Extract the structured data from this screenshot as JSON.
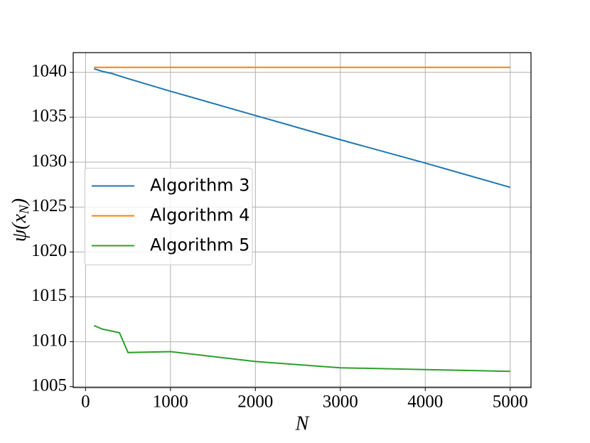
{
  "chart_data": {
    "type": "line",
    "x_label": "N",
    "y_label": "ψ(x_N)",
    "x": [
      100,
      200,
      300,
      400,
      500,
      1000,
      2000,
      3000,
      4000,
      5000
    ],
    "series": [
      {
        "name": "Algorithm 3",
        "color": "#1f77b4",
        "values": [
          1040.4,
          1040.1,
          1039.9,
          1039.6,
          1039.3,
          1037.9,
          1035.2,
          1032.5,
          1029.9,
          1027.2
        ]
      },
      {
        "name": "Algorithm 4",
        "color": "#ff7f0e",
        "values": [
          1040.55,
          1040.55,
          1040.55,
          1040.55,
          1040.55,
          1040.55,
          1040.55,
          1040.55,
          1040.55,
          1040.55
        ]
      },
      {
        "name": "Algorithm 5",
        "color": "#2ca02c",
        "values": [
          1011.8,
          1011.4,
          1011.2,
          1011.0,
          1008.8,
          1008.9,
          1007.8,
          1007.1,
          1006.9,
          1006.7
        ]
      }
    ],
    "xlim": [
      -145,
      5245
    ],
    "ylim": [
      1004.9,
      1042.2
    ],
    "xticks": [
      0,
      1000,
      2000,
      3000,
      4000,
      5000
    ],
    "yticks": [
      1005,
      1010,
      1015,
      1020,
      1025,
      1030,
      1035,
      1040
    ],
    "grid": true,
    "legend": "center left"
  }
}
